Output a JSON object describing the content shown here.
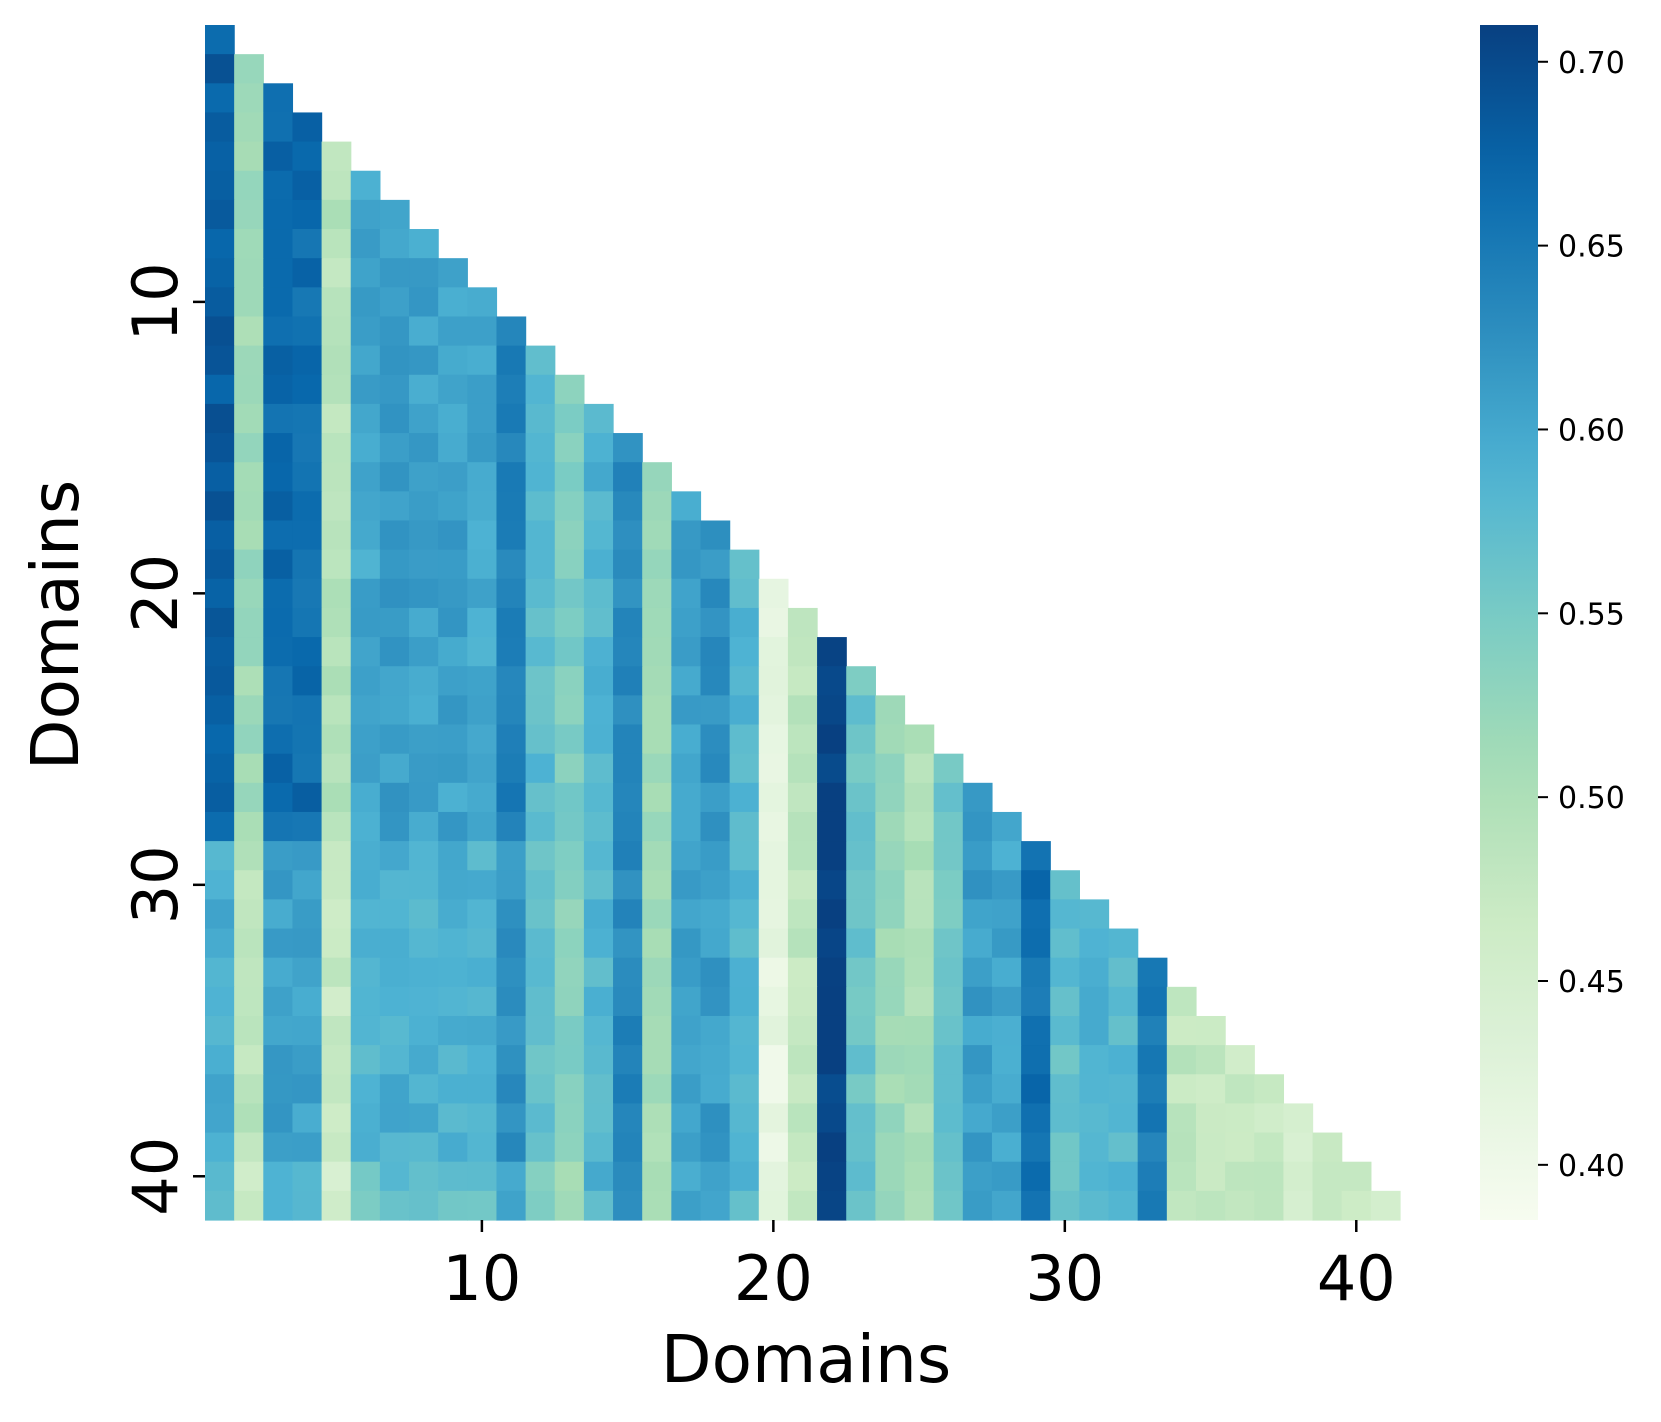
{
  "chart_data": {
    "type": "heatmap",
    "title": "",
    "xlabel": "Domains",
    "ylabel": "Domains",
    "n_rows": 41,
    "n_cols": 41,
    "mask": "upper triangle (cell shown only where column <= row)",
    "x_ticks": [
      {
        "value": 10,
        "label": "10"
      },
      {
        "value": 20,
        "label": "20"
      },
      {
        "value": 30,
        "label": "30"
      },
      {
        "value": 40,
        "label": "40"
      }
    ],
    "y_ticks": [
      {
        "value": 10,
        "label": "10"
      },
      {
        "value": 20,
        "label": "20"
      },
      {
        "value": 30,
        "label": "30"
      },
      {
        "value": 40,
        "label": "40"
      }
    ],
    "colorbar": {
      "colormap": "GnBu",
      "vmin": 0.385,
      "vmax": 0.71,
      "ticks": [
        {
          "value": 0.4,
          "label": "0.40"
        },
        {
          "value": 0.45,
          "label": "0.45"
        },
        {
          "value": 0.5,
          "label": "0.50"
        },
        {
          "value": 0.55,
          "label": "0.55"
        },
        {
          "value": 0.6,
          "label": "0.60"
        },
        {
          "value": 0.65,
          "label": "0.65"
        },
        {
          "value": 0.7,
          "label": "0.70"
        }
      ]
    },
    "column_values_estimated": [
      0.68,
      0.515,
      0.665,
      0.665,
      0.49,
      0.6,
      0.61,
      0.605,
      0.605,
      0.6,
      0.64,
      0.575,
      0.545,
      0.585,
      0.635,
      0.51,
      0.605,
      0.625,
      0.58,
      0.41,
      0.48,
      0.71,
      0.56,
      0.52,
      0.5,
      0.56,
      0.61,
      0.6,
      0.66,
      0.57,
      0.59,
      0.58,
      0.65,
      0.48,
      0.475,
      0.47,
      0.47,
      0.455,
      0.46,
      0.46,
      0.45
    ],
    "column_shifts_after_row_28_estimated": [
      -0.09,
      -0.03,
      -0.055,
      -0.06,
      -0.02,
      -0.02,
      -0.02,
      -0.015,
      -0.015,
      -0.015,
      -0.02,
      -0.01,
      -0.01,
      0,
      0,
      0,
      0,
      -0.015,
      0,
      0,
      0,
      0,
      0,
      0,
      0,
      0,
      0,
      0,
      0,
      0,
      0,
      0,
      0,
      0,
      0,
      0,
      0,
      0,
      0,
      0,
      0
    ]
  }
}
